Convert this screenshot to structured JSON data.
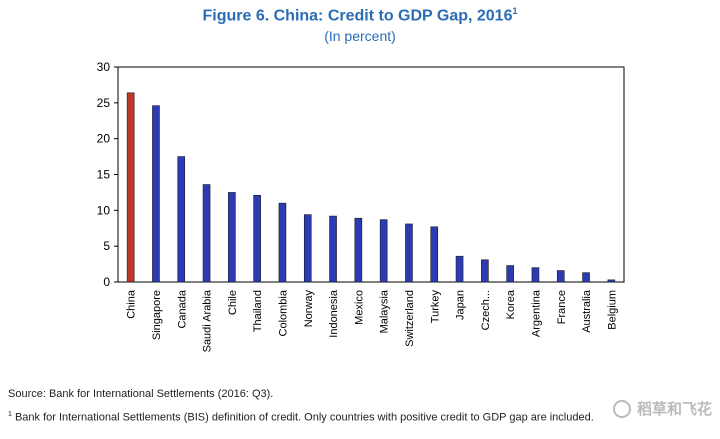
{
  "header": {
    "title": "Figure 6. China: Credit to GDP Gap, 2016",
    "title_sup": "1",
    "subtitle": "(In percent)"
  },
  "chart_data": {
    "type": "bar",
    "title": "Figure 6. China: Credit to GDP Gap, 2016",
    "subtitle": "(In percent)",
    "categories": [
      "China",
      "Singapore",
      "Canada",
      "Saudi Arabia",
      "Chile",
      "Thailand",
      "Colombia",
      "Norway",
      "Indonesia",
      "Mexico",
      "Malaysia",
      "Switzerland",
      "Turkey",
      "Japan",
      "Czech...",
      "Korea",
      "Argentina",
      "France",
      "Australia",
      "Belgium"
    ],
    "values": [
      26.4,
      24.6,
      17.5,
      13.6,
      12.5,
      12.1,
      11.0,
      9.4,
      9.2,
      8.9,
      8.7,
      8.1,
      7.7,
      3.6,
      3.1,
      2.3,
      2.0,
      1.6,
      1.3,
      0.3
    ],
    "ylim": [
      0,
      30
    ],
    "yticks": [
      0,
      5,
      10,
      15,
      20,
      25,
      30
    ],
    "xlabel": "",
    "ylabel": "",
    "colors": {
      "highlight": "#c0362c",
      "bars": "#2b3bb4",
      "outline": "#1a1a1a"
    },
    "highlight_index": 0
  },
  "footer": {
    "source": "Source: Bank for International Settlements (2016: Q3).",
    "note_sup": "1",
    "note": " Bank for International Settlements (BIS) definition of credit. Only countries with positive credit to GDP gap are included."
  },
  "watermark": {
    "text": "稻草和飞花",
    "icon": "wechat-logo-icon"
  }
}
